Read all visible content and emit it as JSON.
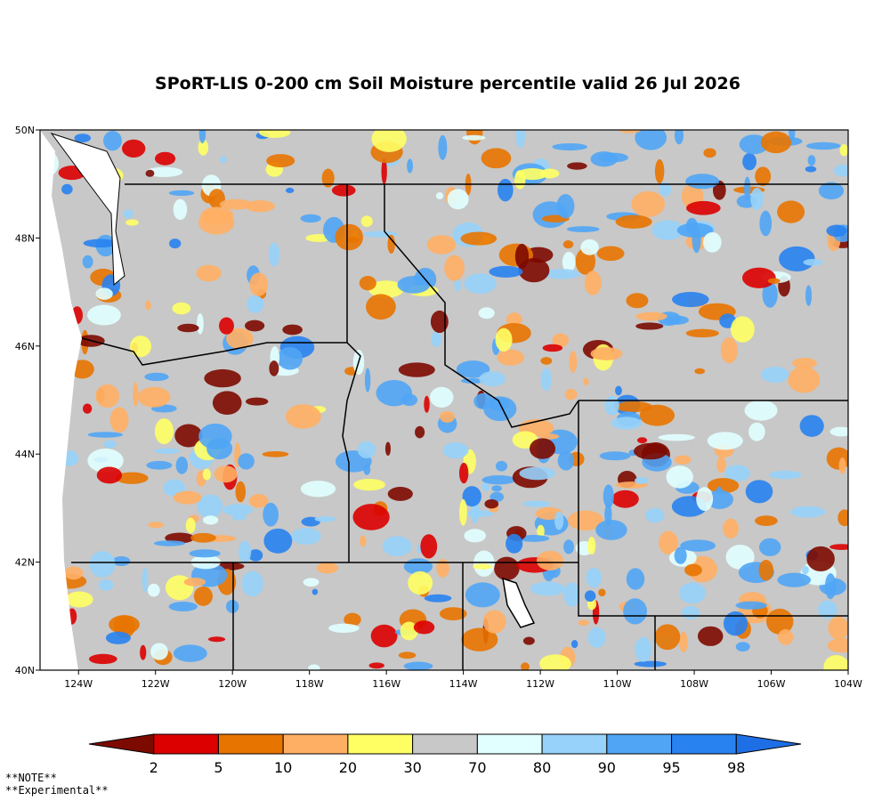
{
  "title": "SPoRT-LIS 0-200 cm Soil Moisture percentile valid 26 Jul 2026",
  "map": {
    "lat_labels": [
      "50N",
      "48N",
      "46N",
      "44N",
      "42N",
      "40N"
    ],
    "lon_labels": [
      "124W",
      "122W",
      "120W",
      "118W",
      "116W",
      "114W",
      "112W",
      "110W",
      "108W",
      "106W",
      "104W"
    ]
  },
  "colorbar": {
    "ticks": [
      2,
      5,
      10,
      20,
      30,
      70,
      80,
      90,
      95,
      98
    ],
    "colors": [
      "#7d0a00",
      "#dc0000",
      "#e87400",
      "#ffaf64",
      "#ffff64",
      "#c8c8c8",
      "#e1ffff",
      "#96d2fa",
      "#50a5f5",
      "#2882f0",
      "#1e6ee6"
    ]
  },
  "notes": [
    "**NOTE**",
    "**Experimental**"
  ]
}
